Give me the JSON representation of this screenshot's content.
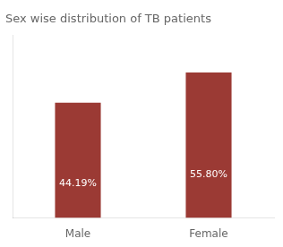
{
  "chart_data": {
    "type": "bar",
    "title": "Sex wise distribution of TB patients",
    "categories": [
      "Male",
      "Female"
    ],
    "values": [
      44.19,
      55.8
    ],
    "value_labels": [
      "44.19%",
      "55.80%"
    ],
    "data_labels": true,
    "color": "#9b3a34",
    "ylim": [
      0,
      70
    ],
    "tick_labels": "x",
    "grid": false
  }
}
